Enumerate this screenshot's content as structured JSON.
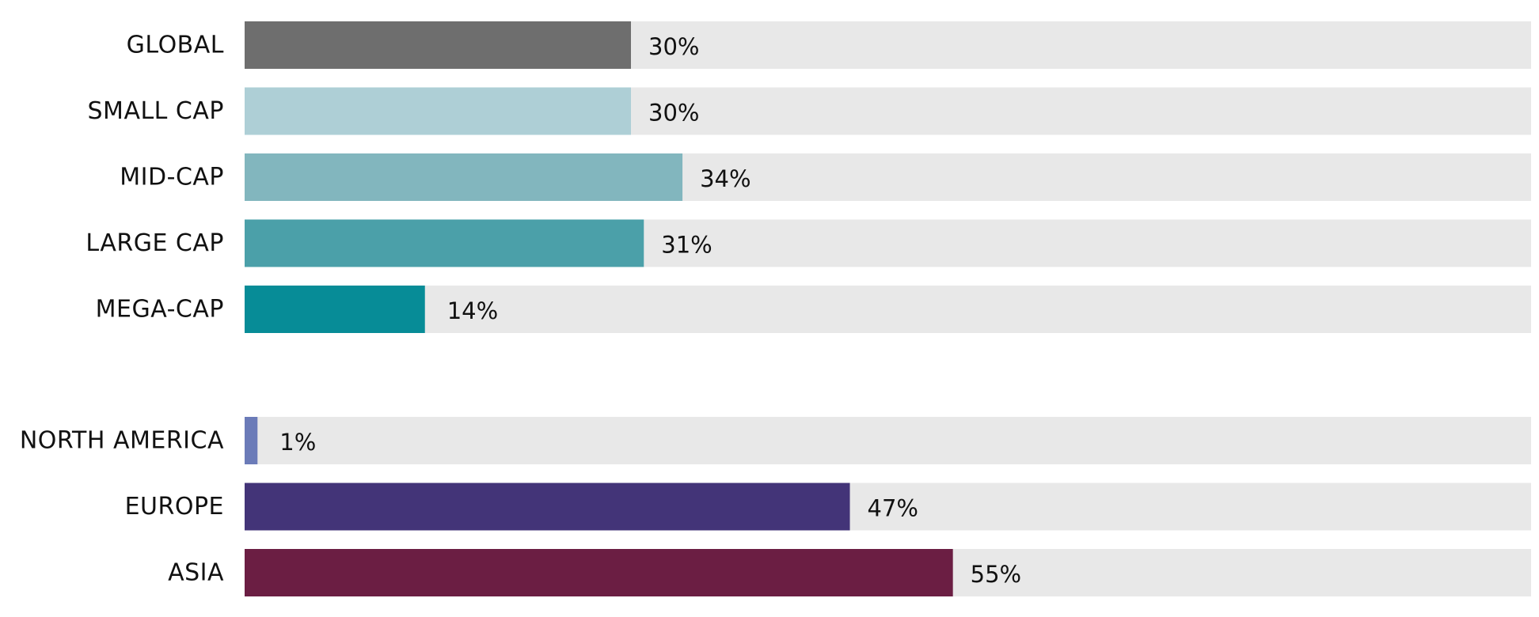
{
  "chart_data": {
    "type": "bar",
    "orientation": "horizontal",
    "xlim": [
      0,
      100
    ],
    "grid": false,
    "legend": "none",
    "groups": [
      {
        "bars": [
          {
            "category": "GLOBAL",
            "value": 30,
            "label": "30%",
            "color": "#6e6e6e"
          },
          {
            "category": "SMALL CAP",
            "value": 30,
            "label": "30%",
            "color": "#aecfd6"
          },
          {
            "category": "MID-CAP",
            "value": 34,
            "label": "34%",
            "color": "#82b6be"
          },
          {
            "category": "LARGE CAP",
            "value": 31,
            "label": "31%",
            "color": "#4ba0a9"
          },
          {
            "category": "MEGA-CAP",
            "value": 14,
            "label": "14%",
            "color": "#078c97"
          }
        ]
      },
      {
        "bars": [
          {
            "category": "NORTH AMERICA",
            "value": 1,
            "label": "1%",
            "color": "#6b7bb8"
          },
          {
            "category": "EUROPE",
            "value": 47,
            "label": "47%",
            "color": "#433478"
          },
          {
            "category": "ASIA",
            "value": 55,
            "label": "55%",
            "color": "#6b1e43"
          }
        ]
      }
    ],
    "track_color": "#e8e8e8"
  }
}
